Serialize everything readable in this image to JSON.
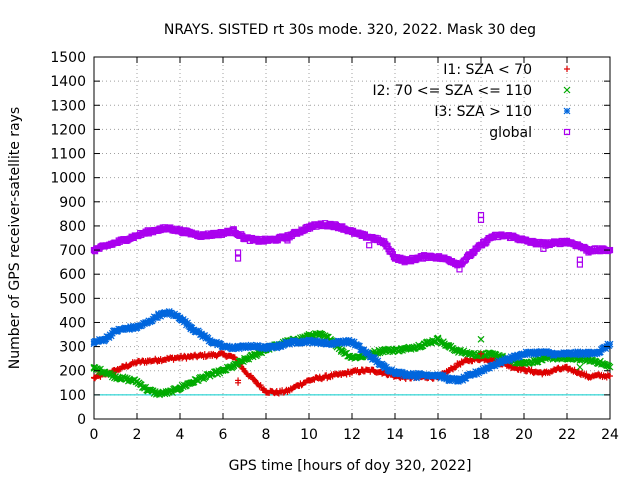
{
  "chart_data": {
    "type": "scatter",
    "title": "NRAYS. SISTED rt 30s mode. 320, 2022. Mask 30 deg",
    "xlabel": "GPS time [hours of doy 320, 2022]",
    "ylabel": "Number of GPS receiver-satellite rays",
    "xlim": [
      0,
      24
    ],
    "ylim": [
      0,
      1500
    ],
    "xticks": [
      0,
      2,
      4,
      6,
      8,
      10,
      12,
      14,
      16,
      18,
      20,
      22,
      24
    ],
    "yticks": [
      0,
      100,
      200,
      300,
      400,
      500,
      600,
      700,
      800,
      900,
      1000,
      1100,
      1200,
      1300,
      1400,
      1500
    ],
    "grid": true,
    "legend_position": "top-right",
    "reference_line": {
      "y": 100,
      "color": "#00cccc"
    },
    "series": [
      {
        "name": "I1: SZA < 70",
        "marker": "+",
        "color": "#dd0000",
        "x": [
          0,
          0.5,
          1,
          1.5,
          2,
          2.5,
          3,
          3.5,
          4,
          4.5,
          5,
          5.5,
          6,
          6.5,
          7,
          7.5,
          8,
          8.5,
          9,
          9.5,
          10,
          10.5,
          11,
          11.5,
          12,
          12.5,
          13,
          13.5,
          14,
          14.5,
          15,
          15.5,
          16,
          16.5,
          17,
          17.5,
          18,
          18.5,
          19,
          19.5,
          20,
          20.5,
          21,
          21.5,
          22,
          22.5,
          23,
          23.5,
          24
        ],
        "y": [
          170,
          185,
          200,
          220,
          235,
          240,
          245,
          250,
          255,
          258,
          262,
          265,
          268,
          255,
          200,
          155,
          115,
          110,
          115,
          140,
          160,
          170,
          178,
          185,
          195,
          200,
          200,
          192,
          178,
          172,
          172,
          175,
          172,
          200,
          230,
          245,
          250,
          248,
          230,
          215,
          205,
          195,
          190,
          205,
          210,
          195,
          175,
          180,
          178
        ]
      },
      {
        "name": "I2: 70 <= SZA <= 110",
        "marker": "x",
        "color": "#00aa00",
        "x": [
          0,
          0.5,
          1,
          1.5,
          2,
          2.5,
          3,
          3.5,
          4,
          4.5,
          5,
          5.5,
          6,
          6.5,
          7,
          7.5,
          8,
          8.5,
          9,
          9.5,
          10,
          10.5,
          11,
          11.5,
          12,
          12.5,
          13,
          13.5,
          14,
          14.5,
          15,
          15.5,
          16,
          16.5,
          17,
          17.5,
          18,
          18.5,
          19,
          19.5,
          20,
          20.5,
          21,
          21.5,
          22,
          22.5,
          23,
          23.5,
          24
        ],
        "y": [
          210,
          195,
          175,
          165,
          155,
          120,
          105,
          110,
          130,
          150,
          170,
          185,
          200,
          220,
          245,
          265,
          290,
          305,
          320,
          330,
          345,
          350,
          330,
          285,
          255,
          260,
          275,
          285,
          285,
          290,
          300,
          315,
          330,
          300,
          280,
          270,
          265,
          270,
          255,
          240,
          232,
          240,
          250,
          255,
          250,
          250,
          245,
          235,
          215
        ]
      },
      {
        "name": "I3: SZA > 110",
        "marker": "*",
        "color": "#0066dd",
        "x": [
          0,
          0.5,
          1,
          1.5,
          2,
          2.5,
          3,
          3.5,
          4,
          4.5,
          5,
          5.5,
          6,
          6.5,
          7,
          7.5,
          8,
          8.5,
          9,
          9.5,
          10,
          10.5,
          11,
          11.5,
          12,
          12.5,
          13,
          13.5,
          14,
          14.5,
          15,
          15.5,
          16,
          16.5,
          17,
          17.5,
          18,
          18.5,
          19,
          19.5,
          20,
          20.5,
          21,
          21.5,
          22,
          22.5,
          23,
          23.5,
          24
        ],
        "y": [
          318,
          330,
          365,
          375,
          380,
          400,
          430,
          440,
          420,
          380,
          350,
          320,
          300,
          295,
          300,
          300,
          295,
          300,
          315,
          320,
          322,
          318,
          312,
          320,
          320,
          285,
          250,
          215,
          195,
          185,
          183,
          183,
          182,
          165,
          160,
          180,
          200,
          220,
          240,
          255,
          270,
          275,
          275,
          268,
          270,
          272,
          272,
          278,
          310
        ]
      },
      {
        "name": "global",
        "marker": "square",
        "color": "#aa00ee",
        "x": [
          0,
          0.5,
          1,
          1.5,
          2,
          2.5,
          3,
          3.5,
          4,
          4.5,
          5,
          5.5,
          6,
          6.5,
          7,
          7.5,
          8,
          8.5,
          9,
          9.5,
          10,
          10.5,
          11,
          11.5,
          12,
          12.5,
          13,
          13.5,
          14,
          14.5,
          15,
          15.5,
          16,
          16.5,
          17,
          17.5,
          18,
          18.5,
          19,
          19.5,
          20,
          20.5,
          21,
          21.5,
          22,
          22.5,
          23,
          23.5,
          24
        ],
        "y": [
          700,
          715,
          730,
          745,
          760,
          775,
          785,
          790,
          780,
          770,
          760,
          765,
          770,
          780,
          750,
          740,
          740,
          745,
          755,
          775,
          795,
          805,
          805,
          795,
          775,
          760,
          750,
          730,
          670,
          655,
          665,
          675,
          670,
          660,
          640,
          680,
          720,
          755,
          760,
          755,
          740,
          730,
          725,
          730,
          735,
          720,
          700,
          700,
          700
        ]
      }
    ],
    "outliers": [
      {
        "series": "global",
        "x": 6.7,
        "y": 665
      },
      {
        "series": "global",
        "x": 6.7,
        "y": 690
      },
      {
        "series": "global",
        "x": 9.0,
        "y": 740
      },
      {
        "series": "global",
        "x": 12.8,
        "y": 720
      },
      {
        "series": "global",
        "x": 17.0,
        "y": 620
      },
      {
        "series": "global",
        "x": 18.0,
        "y": 825
      },
      {
        "series": "global",
        "x": 18.0,
        "y": 845
      },
      {
        "series": "global",
        "x": 20.9,
        "y": 705
      },
      {
        "series": "global",
        "x": 22.6,
        "y": 640
      },
      {
        "series": "global",
        "x": 22.6,
        "y": 660
      },
      {
        "series": "global",
        "x": 23.0,
        "y": 690
      },
      {
        "series": "I1: SZA < 70",
        "x": 6.7,
        "y": 150
      },
      {
        "series": "I1: SZA < 70",
        "x": 6.7,
        "y": 160
      },
      {
        "series": "I1: SZA < 70",
        "x": 18.0,
        "y": 270
      },
      {
        "series": "I2: 70 <= SZA <= 110",
        "x": 18.0,
        "y": 330
      },
      {
        "series": "I2: 70 <= SZA <= 110",
        "x": 22.6,
        "y": 215
      },
      {
        "series": "I3: SZA > 110",
        "x": 15.0,
        "y": 170
      }
    ]
  }
}
